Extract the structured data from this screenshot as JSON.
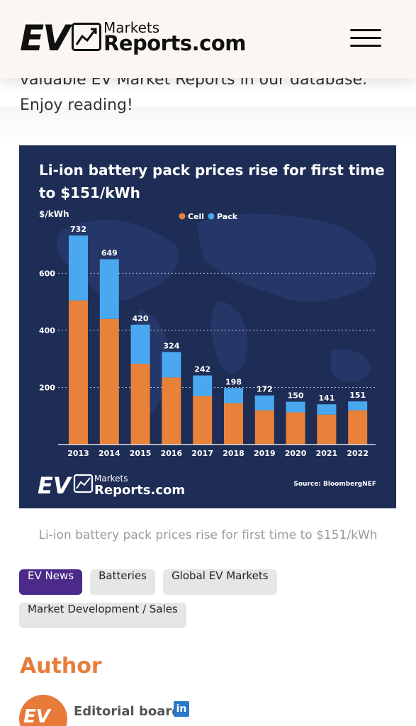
{
  "header": {
    "logo_ev": "EV",
    "logo_markets": "Markets",
    "logo_reports": "Reports.com",
    "menu_icon": "hamburger-menu-icon"
  },
  "intro_text": "valuable EV Market Reports in our database. Enjoy reading!",
  "infographic": {
    "title_line1": "Li-ion battery pack prices rise for first time",
    "title_line2": "to $151/kWh",
    "ylabel": "$/kWh",
    "legend_cell": "Cell",
    "legend_pack": "Pack",
    "source": "Source: BloombergNEF",
    "logo_ev": "EV",
    "logo_markets": "Markets",
    "logo_reports": "Reports.com",
    "colors": {
      "background": "#1e2d55",
      "cell": "#e8823a",
      "pack": "#4aa8f0"
    }
  },
  "chart_data": {
    "type": "bar",
    "stacked": true,
    "title": "Li-ion battery pack prices rise for first time to $151/kWh",
    "ylabel": "$/kWh",
    "categories": [
      "2013",
      "2014",
      "2015",
      "2016",
      "2017",
      "2018",
      "2019",
      "2020",
      "2021",
      "2022"
    ],
    "totals": [
      732,
      649,
      420,
      324,
      242,
      198,
      172,
      150,
      141,
      151
    ],
    "series": [
      {
        "name": "Cell",
        "color": "#e8823a",
        "values": [
          505,
          440,
          283,
          235,
          170,
          145,
          120,
          113,
          105,
          120
        ]
      },
      {
        "name": "Pack",
        "color": "#4aa8f0",
        "values": [
          227,
          209,
          137,
          89,
          72,
          53,
          52,
          37,
          36,
          31
        ]
      }
    ],
    "yticks": [
      200,
      400,
      600
    ],
    "ylim": [
      0,
      750
    ],
    "grid": true,
    "legend": "top-center"
  },
  "caption": "Li-ion battery pack prices rise for first time to $151/kWh",
  "tags": [
    "EV News",
    "Batteries",
    "Global EV Markets",
    "Market Development / Sales"
  ],
  "author": {
    "heading": "Author",
    "name": "Editorial board",
    "avatar_text": "EV",
    "social_icon": "linkedin-icon"
  }
}
